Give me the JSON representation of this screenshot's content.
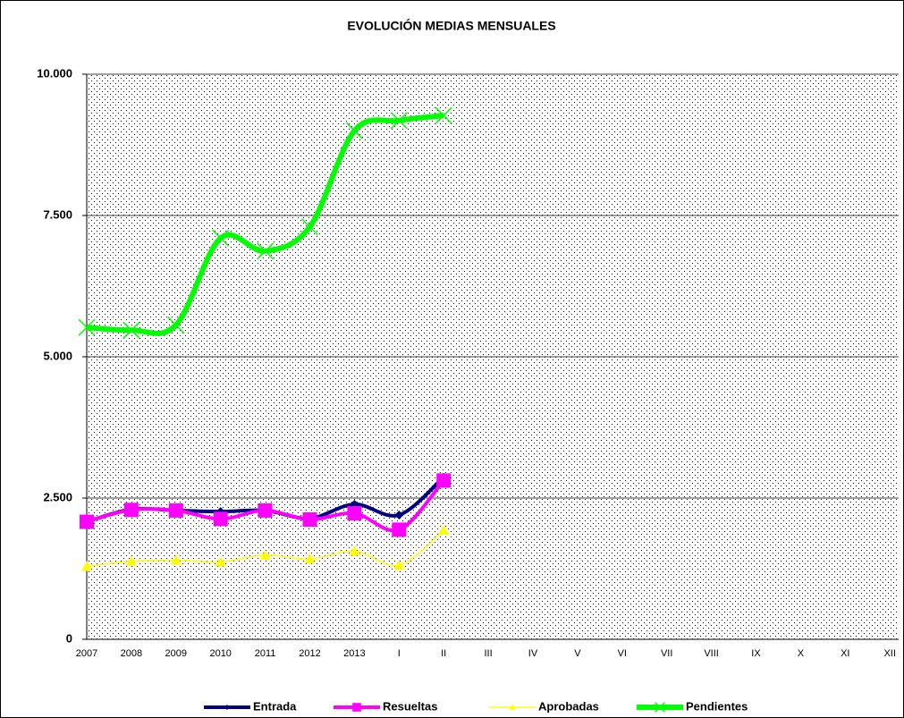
{
  "chart_data": {
    "type": "line",
    "title": "EVOLUCIÓN MEDIAS MENSUALES",
    "categories": [
      "2007",
      "2008",
      "2009",
      "2010",
      "2011",
      "2012",
      "2013",
      "I",
      "II",
      "III",
      "IV",
      "V",
      "VI",
      "VII",
      "VIII",
      "IX",
      "X",
      "XI",
      "XII"
    ],
    "series": [
      {
        "name": "Entrada",
        "color": "#000080",
        "marker": "diamond",
        "values": [
          2080,
          2300,
          2280,
          2260,
          2280,
          2140,
          2390,
          2200,
          2870,
          null,
          null,
          null,
          null,
          null,
          null,
          null,
          null,
          null,
          null
        ]
      },
      {
        "name": "Resueltas",
        "color": "#ff00ff",
        "marker": "square",
        "values": [
          2080,
          2290,
          2280,
          2130,
          2280,
          2120,
          2230,
          1940,
          2810,
          null,
          null,
          null,
          null,
          null,
          null,
          null,
          null,
          null,
          null
        ]
      },
      {
        "name": "Aprobadas",
        "color": "#ffff00",
        "marker": "triangle",
        "values": [
          1290,
          1380,
          1400,
          1370,
          1490,
          1420,
          1560,
          1310,
          1930,
          null,
          null,
          null,
          null,
          null,
          null,
          null,
          null,
          null,
          null
        ]
      },
      {
        "name": "Pendientes",
        "color": "#00ff00",
        "marker": "x",
        "values": [
          5520,
          5470,
          5560,
          7100,
          6870,
          7300,
          9000,
          9180,
          9270,
          null,
          null,
          null,
          null,
          null,
          null,
          null,
          null,
          null,
          null
        ]
      }
    ],
    "ylim": [
      0,
      10000
    ],
    "yticks": [
      {
        "value": 0,
        "label": "0"
      },
      {
        "value": 2500,
        "label": "2.500"
      },
      {
        "value": 5000,
        "label": "5.000"
      },
      {
        "value": 7500,
        "label": "7.500"
      },
      {
        "value": 10000,
        "label": "10.000"
      }
    ],
    "grid": true,
    "legend": "bottom"
  }
}
